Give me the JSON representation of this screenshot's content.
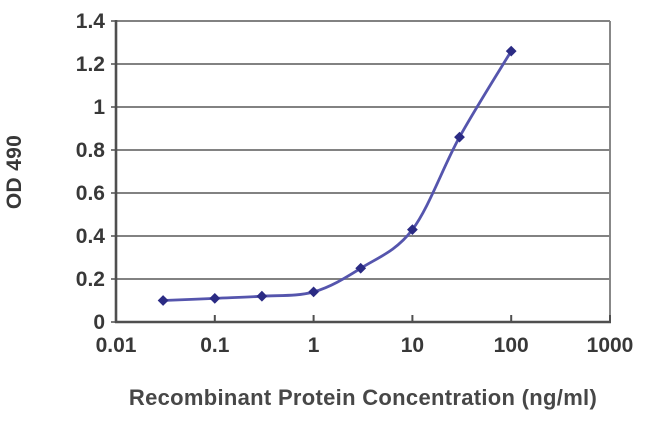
{
  "figure": {
    "background": "#ffffff"
  },
  "chart_data": {
    "type": "line",
    "title": "",
    "xlabel": "Recombinant Protein Concentration (ng/ml)",
    "ylabel": "OD 490",
    "x_scale": "log",
    "y_scale": "linear",
    "xlim": [
      0.01,
      1000
    ],
    "ylim": [
      0,
      1.4
    ],
    "x_ticks": [
      {
        "value": 0.01,
        "label": "0.01"
      },
      {
        "value": 0.1,
        "label": "0.1"
      },
      {
        "value": 1,
        "label": "1"
      },
      {
        "value": 10,
        "label": "10"
      },
      {
        "value": 100,
        "label": "100"
      },
      {
        "value": 1000,
        "label": "1000"
      }
    ],
    "y_ticks": [
      {
        "value": 0,
        "label": "0"
      },
      {
        "value": 0.2,
        "label": "0.2"
      },
      {
        "value": 0.4,
        "label": "0.4"
      },
      {
        "value": 0.6,
        "label": "0.6"
      },
      {
        "value": 0.8,
        "label": "0.8"
      },
      {
        "value": 1,
        "label": "1"
      },
      {
        "value": 1.2,
        "label": "1.2"
      },
      {
        "value": 1.4,
        "label": "1.4"
      }
    ],
    "series": [
      {
        "name": "OD 490",
        "marker": "diamond",
        "line_style": "smooth",
        "points": [
          {
            "x": 0.03,
            "y": 0.1
          },
          {
            "x": 0.1,
            "y": 0.11
          },
          {
            "x": 0.3,
            "y": 0.12
          },
          {
            "x": 1,
            "y": 0.14
          },
          {
            "x": 3,
            "y": 0.25
          },
          {
            "x": 10,
            "y": 0.43
          },
          {
            "x": 30,
            "y": 0.86
          },
          {
            "x": 100,
            "y": 1.26
          }
        ]
      }
    ],
    "grid": "horizontal",
    "legend": "none",
    "colors": {
      "line": "#5555ad",
      "marker": "#2b2b84",
      "gridline": "#828282",
      "axis": "#4f4f4f",
      "tick_text": "#383838",
      "label_text": "#474747"
    }
  }
}
